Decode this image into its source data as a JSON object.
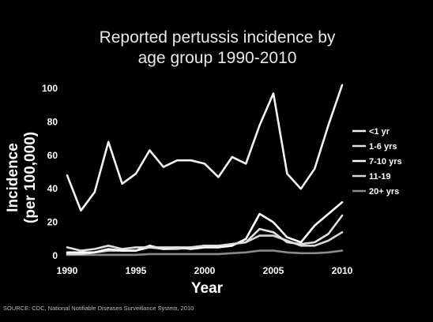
{
  "chart_data": {
    "type": "line",
    "title_lines": [
      "Reported pertussis incidence by",
      "age group 1990-2010"
    ],
    "xlabel": "Year",
    "ylabel_lines": [
      "Incidence",
      "(per 100,000)"
    ],
    "xlim": [
      1990,
      2010
    ],
    "ylim": [
      0,
      100
    ],
    "x_ticks": [
      "1990",
      "1995",
      "2000",
      "2005",
      "2010"
    ],
    "y_ticks": [
      "0",
      "20",
      "40",
      "60",
      "80",
      "100"
    ],
    "x": [
      1990,
      1991,
      1992,
      1993,
      1994,
      1995,
      1996,
      1997,
      1998,
      1999,
      2000,
      2001,
      2002,
      2003,
      2004,
      2005,
      2006,
      2007,
      2008,
      2009,
      2010
    ],
    "series": [
      {
        "name": "<1 yr",
        "color": "#f2f2f2",
        "values": [
          48,
          27,
          38,
          68,
          43,
          49,
          63,
          53,
          57,
          57,
          55,
          47,
          59,
          55,
          78,
          97,
          49,
          40,
          52,
          78,
          102
        ]
      },
      {
        "name": "1-6 yrs",
        "color": "#e0e0e0",
        "values": [
          5,
          3,
          4,
          6,
          4,
          5,
          5,
          5,
          5,
          5,
          6,
          6,
          7,
          8,
          16,
          14,
          8,
          7,
          8,
          13,
          24
        ]
      },
      {
        "name": "7-10 yrs",
        "color": "#ffffff",
        "values": [
          2,
          2,
          2,
          4,
          3,
          3,
          6,
          4,
          5,
          4,
          5,
          5,
          6,
          10,
          25,
          20,
          11,
          8,
          18,
          25,
          32
        ]
      },
      {
        "name": "11-19",
        "color": "#d6d6d6",
        "values": [
          1,
          1,
          2,
          3,
          3,
          3,
          5,
          4,
          4,
          5,
          6,
          5,
          7,
          8,
          12,
          12,
          9,
          6,
          6,
          9,
          14
        ]
      },
      {
        "name": "20+ yrs",
        "color": "#8a8a8a",
        "values": [
          0.5,
          0.5,
          0.5,
          0.5,
          0.5,
          0.5,
          1,
          1,
          1,
          1,
          1,
          1,
          1.5,
          2,
          3,
          3,
          2,
          1.5,
          1.5,
          2,
          3
        ]
      }
    ]
  },
  "source_note": "SOURCE: CDC, National Notifiable Diseases Surveillance System, 2010"
}
